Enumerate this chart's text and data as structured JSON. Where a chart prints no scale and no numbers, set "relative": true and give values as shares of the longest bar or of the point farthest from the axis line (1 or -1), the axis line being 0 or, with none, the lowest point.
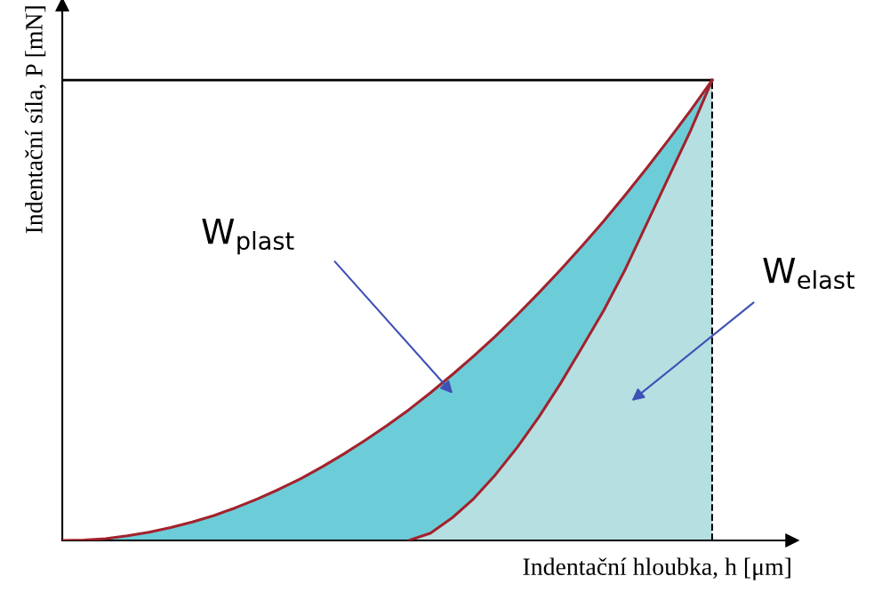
{
  "chart_data": {
    "type": "area",
    "relative": true,
    "xlabel": "Indentační hloubka, h [μm]",
    "ylabel": "Indentační síla, P [mN]",
    "categories": [
      null,
      null,
      null,
      null,
      null,
      null,
      null,
      null,
      null,
      null,
      null,
      null,
      null,
      null,
      null,
      null,
      null,
      null,
      null,
      null,
      null,
      null,
      null,
      null,
      null,
      null,
      null,
      null,
      null,
      null,
      null
    ],
    "series": [
      {
        "color": "#6ccdd9",
        "values": [
          0,
          0.001,
          0.004,
          0.01,
          0.018,
          0.028,
          0.04,
          0.054,
          0.071,
          0.09,
          0.111,
          0.134,
          0.16,
          0.188,
          0.218,
          0.25,
          0.284,
          0.321,
          0.36,
          0.401,
          0.444,
          0.49,
          0.538,
          0.588,
          0.64,
          0.694,
          0.751,
          0.81,
          0.871,
          0.934,
          1
        ]
      },
      {
        "color": "#b6dfe2",
        "values": [
          null,
          null,
          null,
          null,
          null,
          null,
          null,
          null,
          null,
          null,
          null,
          null,
          null,
          null,
          null,
          null,
          0,
          0.016,
          0.049,
          0.091,
          0.143,
          0.202,
          0.268,
          0.341,
          0.42,
          0.5,
          0.59,
          0.69,
          0.79,
          0.89,
          1
        ]
      }
    ],
    "ref_lines": [
      {
        "axis": "y",
        "value": 1,
        "color": "#000000",
        "line_style": "solid"
      }
    ],
    "annotations": [
      "W$_{plast}$",
      "W$_{elast}$"
    ],
    "tick_labels": false
  }
}
